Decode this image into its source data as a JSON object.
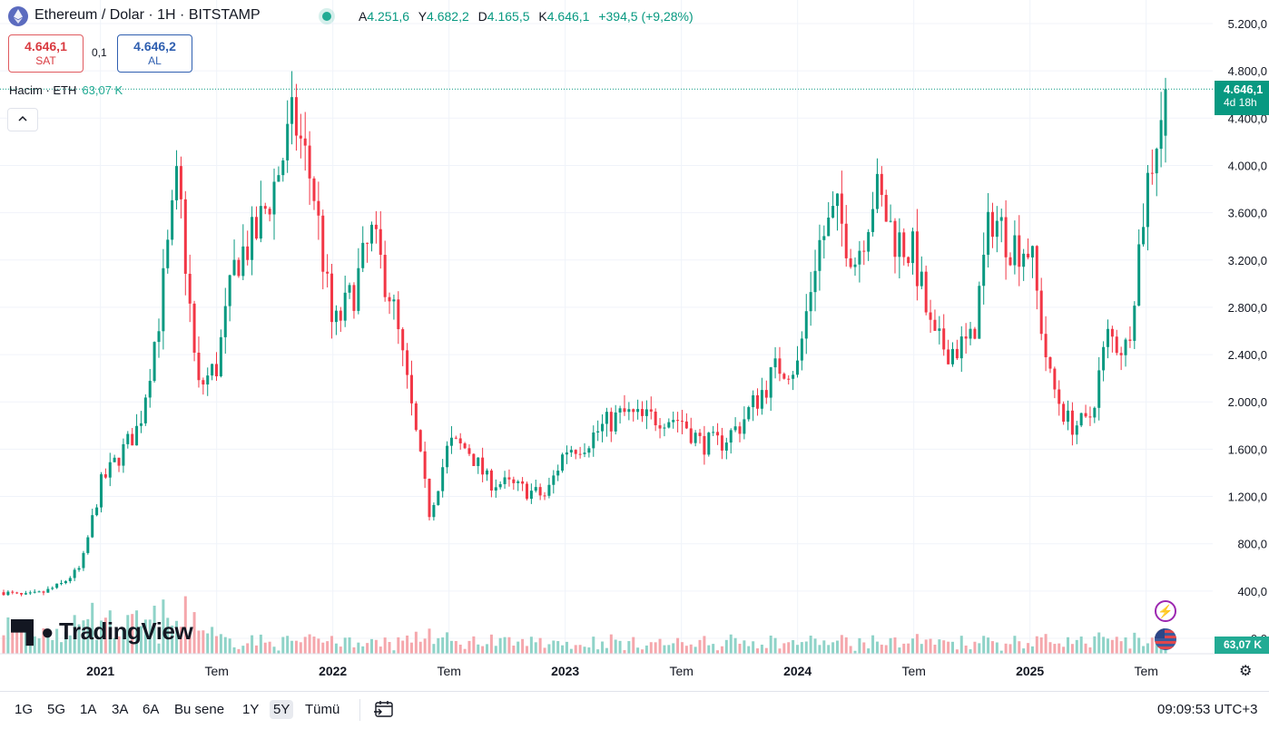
{
  "header": {
    "symbol": "Ethereum / Dolar · 1H · BITSTAMP",
    "ohlc": {
      "o_label": "A",
      "o": "4.251,6",
      "h_label": "Y",
      "h": "4.682,2",
      "l_label": "D",
      "l": "4.165,5",
      "c_label": "K",
      "c": "4.646,1",
      "change": "+394,5 (+9,28%)"
    }
  },
  "quotes": {
    "sell_price": "4.646,1",
    "sell_label": "SAT",
    "spread": "0,1",
    "buy_price": "4.646,2",
    "buy_label": "AL"
  },
  "volume_indicator": {
    "label": "Hacim · ETH",
    "value": "63,07 K"
  },
  "logo_text": "TradingView",
  "price_tag": {
    "price": "4.646,1",
    "countdown": "4d 18h"
  },
  "volume_tag": "63,07 K",
  "bottom_bar": {
    "ranges": [
      "1G",
      "5G",
      "1A",
      "3A",
      "6A",
      "Bu sene",
      "1Y",
      "5Y",
      "Tümü"
    ],
    "active_range": "5Y",
    "clock": "09:09:53 UTC+3"
  },
  "colors": {
    "up": "#089981",
    "down": "#f23645",
    "up_volume": "#8fd3c8",
    "down_volume": "#f5a7ac",
    "price_line": "#089981"
  },
  "chart_data": {
    "type": "candlestick",
    "title": "Ethereum / Dolar · 1H · BITSTAMP",
    "ylim": [
      0,
      5200
    ],
    "y_ticks": [
      "5.200,0",
      "4.800,0",
      "4.400,0",
      "4.000,0",
      "3.600,0",
      "3.200,0",
      "2.800,0",
      "2.400,0",
      "2.000,0",
      "1.600,0",
      "1.200,0",
      "800,0",
      "400,0",
      "0,0"
    ],
    "y_tick_values": [
      5200,
      4800,
      4400,
      4000,
      3600,
      3200,
      2800,
      2400,
      2000,
      1600,
      1200,
      800,
      400,
      0
    ],
    "x_ticks": [
      "2021",
      "Tem",
      "2022",
      "Tem",
      "2023",
      "Tem",
      "2024",
      "Tem",
      "2025",
      "Tem"
    ],
    "x_tick_bold": [
      true,
      false,
      true,
      false,
      true,
      false,
      true,
      false,
      true,
      false
    ],
    "x_tick_dates": [
      "2021-01",
      "2021-07",
      "2022-01",
      "2022-07",
      "2023-01",
      "2023-07",
      "2024-01",
      "2024-07",
      "2025-01",
      "2025-07"
    ],
    "last_price": 4646.1,
    "close_path": [
      [
        "2020-08",
        390
      ],
      [
        "2020-09",
        360
      ],
      [
        "2020-10",
        385
      ],
      [
        "2020-11",
        460
      ],
      [
        "2020-12",
        600
      ],
      [
        "2021-01",
        1300
      ],
      [
        "2021-02",
        1550
      ],
      [
        "2021-03",
        1800
      ],
      [
        "2021-04",
        2700
      ],
      [
        "2021-05",
        3900
      ],
      [
        "2021-06",
        2100
      ],
      [
        "2021-07",
        2300
      ],
      [
        "2021-08",
        3200
      ],
      [
        "2021-09",
        3400
      ],
      [
        "2021-10",
        3850
      ],
      [
        "2021-11",
        4400
      ],
      [
        "2021-12",
        3800
      ],
      [
        "2022-01",
        2600
      ],
      [
        "2022-02",
        2900
      ],
      [
        "2022-03",
        3400
      ],
      [
        "2022-04",
        2900
      ],
      [
        "2022-05",
        2000
      ],
      [
        "2022-06",
        1050
      ],
      [
        "2022-07",
        1650
      ],
      [
        "2022-08",
        1600
      ],
      [
        "2022-09",
        1330
      ],
      [
        "2022-10",
        1300
      ],
      [
        "2022-11",
        1250
      ],
      [
        "2022-12",
        1200
      ],
      [
        "2023-01",
        1600
      ],
      [
        "2023-02",
        1650
      ],
      [
        "2023-03",
        1800
      ],
      [
        "2023-04",
        1900
      ],
      [
        "2023-05",
        1850
      ],
      [
        "2023-06",
        1880
      ],
      [
        "2023-07",
        1850
      ],
      [
        "2023-08",
        1650
      ],
      [
        "2023-09",
        1650
      ],
      [
        "2023-10",
        1800
      ],
      [
        "2023-11",
        2050
      ],
      [
        "2023-12",
        2300
      ],
      [
        "2024-01",
        2300
      ],
      [
        "2024-02",
        3300
      ],
      [
        "2024-03",
        3600
      ],
      [
        "2024-04",
        3200
      ],
      [
        "2024-05",
        3800
      ],
      [
        "2024-06",
        3400
      ],
      [
        "2024-07",
        3250
      ],
      [
        "2024-08",
        2500
      ],
      [
        "2024-09",
        2450
      ],
      [
        "2024-10",
        2500
      ],
      [
        "2024-11",
        3600
      ],
      [
        "2024-12",
        3350
      ],
      [
        "2025-01",
        3300
      ],
      [
        "2025-02",
        2200
      ],
      [
        "2025-03",
        1820
      ],
      [
        "2025-04",
        1800
      ],
      [
        "2025-05",
        2550
      ],
      [
        "2025-06",
        2450
      ],
      [
        "2025-07",
        3800
      ],
      [
        "2025-08",
        4646
      ]
    ]
  }
}
